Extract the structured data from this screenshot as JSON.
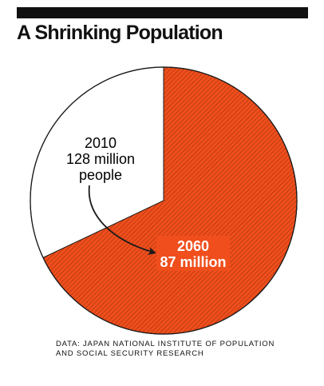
{
  "header": {
    "title": "A Shrinking Population"
  },
  "colors": {
    "accent": "#f04e1c",
    "ink": "#1a1a1a"
  },
  "chart_data": {
    "type": "pie",
    "title": "A Shrinking Population",
    "unit": "million people",
    "slices": [
      {
        "label_year": "2010",
        "label_value": "128 million",
        "label_unit": "people",
        "value": 128,
        "role": "total"
      },
      {
        "label_year": "2060",
        "label_value": "87 million",
        "value": 87,
        "role": "part"
      }
    ],
    "highlight_pattern": "diagonal-hatch"
  },
  "source": {
    "line1": "DATA: JAPAN NATIONAL INSTITUTE OF POPULATION",
    "line2": "AND SOCIAL SECURITY RESEARCH"
  }
}
